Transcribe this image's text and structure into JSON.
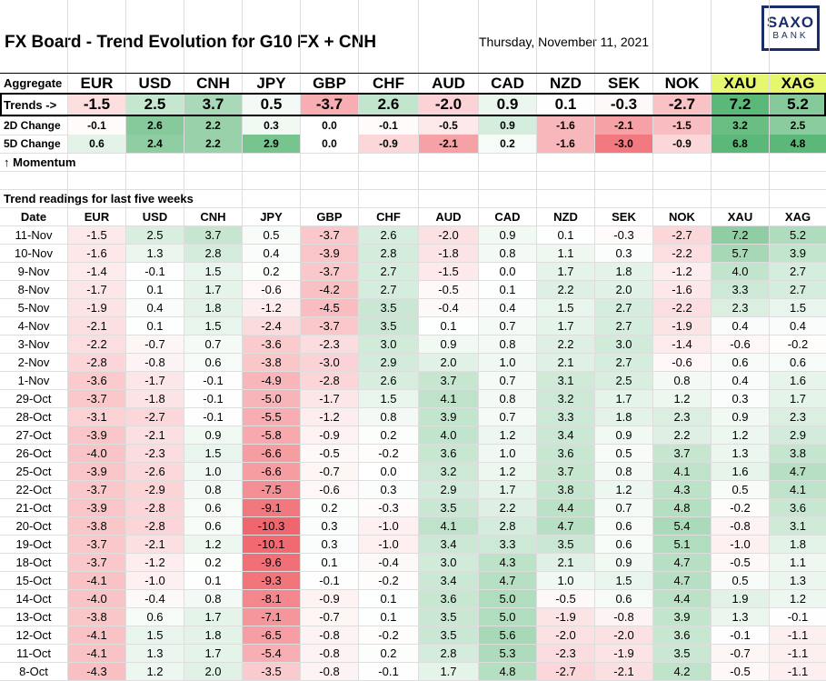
{
  "header": {
    "title": "FX Board - Trend Evolution for G10 FX + CNH",
    "date": "Thursday, November 11, 2021",
    "logo": [
      "SAXO",
      "BANK"
    ]
  },
  "colors": {
    "positive": "#5cb878",
    "negative": "#f0636b",
    "metals_header": "#e6f76f",
    "logo": "#1a2d6b"
  },
  "columns": [
    "EUR",
    "USD",
    "CNH",
    "JPY",
    "GBP",
    "CHF",
    "AUD",
    "CAD",
    "NZD",
    "SEK",
    "NOK",
    "XAU",
    "XAG"
  ],
  "aggregate": {
    "label": "Aggregate",
    "rows": [
      {
        "label": "Trends ->",
        "values": [
          -1.5,
          2.5,
          3.7,
          0.5,
          -3.7,
          2.6,
          -2.0,
          0.9,
          0.1,
          -0.3,
          -2.7,
          7.2,
          5.2
        ]
      },
      {
        "label": "2D Change",
        "values": [
          -0.1,
          2.6,
          2.2,
          0.3,
          0.0,
          -0.1,
          -0.5,
          0.9,
          -1.6,
          -2.1,
          -1.5,
          3.2,
          2.5
        ]
      },
      {
        "label": "5D Change",
        "values": [
          0.6,
          2.4,
          2.2,
          2.9,
          0.0,
          -0.9,
          -2.1,
          0.2,
          -1.6,
          -3.0,
          -0.9,
          6.8,
          4.8
        ]
      }
    ],
    "momentum_label": "↑ Momentum"
  },
  "history": {
    "section_title": "Trend readings for last five weeks",
    "date_header": "Date",
    "rows": [
      {
        "date": "11-Nov",
        "values": [
          -1.5,
          2.5,
          3.7,
          0.5,
          -3.7,
          2.6,
          -2.0,
          0.9,
          0.1,
          -0.3,
          -2.7,
          7.2,
          5.2
        ]
      },
      {
        "date": "10-Nov",
        "values": [
          -1.6,
          1.3,
          2.8,
          0.4,
          -3.9,
          2.8,
          -1.8,
          0.8,
          1.1,
          0.3,
          -2.2,
          5.7,
          3.9
        ]
      },
      {
        "date": "9-Nov",
        "values": [
          -1.4,
          -0.1,
          1.5,
          0.2,
          -3.7,
          2.7,
          -1.5,
          0.0,
          1.7,
          1.8,
          -1.2,
          4.0,
          2.7
        ]
      },
      {
        "date": "8-Nov",
        "values": [
          -1.7,
          0.1,
          1.7,
          -0.6,
          -4.2,
          2.7,
          -0.5,
          0.1,
          2.2,
          2.0,
          -1.6,
          3.3,
          2.7
        ]
      },
      {
        "date": "5-Nov",
        "values": [
          -1.9,
          0.4,
          1.8,
          -1.2,
          -4.5,
          3.5,
          -0.4,
          0.4,
          1.5,
          2.7,
          -2.2,
          2.3,
          1.5
        ]
      },
      {
        "date": "4-Nov",
        "values": [
          -2.1,
          0.1,
          1.5,
          -2.4,
          -3.7,
          3.5,
          0.1,
          0.7,
          1.7,
          2.7,
          -1.9,
          0.4,
          0.4
        ]
      },
      {
        "date": "3-Nov",
        "values": [
          -2.2,
          -0.7,
          0.7,
          -3.6,
          -2.3,
          3.0,
          0.9,
          0.8,
          2.2,
          3.0,
          -1.4,
          -0.6,
          -0.2
        ]
      },
      {
        "date": "2-Nov",
        "values": [
          -2.8,
          -0.8,
          0.6,
          -3.8,
          -3.0,
          2.9,
          2.0,
          1.0,
          2.1,
          2.7,
          -0.6,
          0.6,
          0.6
        ]
      },
      {
        "date": "1-Nov",
        "values": [
          -3.6,
          -1.7,
          -0.1,
          -4.9,
          -2.8,
          2.6,
          3.7,
          0.7,
          3.1,
          2.5,
          0.8,
          0.4,
          1.6
        ]
      },
      {
        "date": "29-Oct",
        "values": [
          -3.7,
          -1.8,
          -0.1,
          -5.0,
          -1.7,
          1.5,
          4.1,
          0.8,
          3.2,
          1.7,
          1.2,
          0.3,
          1.7
        ]
      },
      {
        "date": "28-Oct",
        "values": [
          -3.1,
          -2.7,
          -0.1,
          -5.5,
          -1.2,
          0.8,
          3.9,
          0.7,
          3.3,
          1.8,
          2.3,
          0.9,
          2.3
        ]
      },
      {
        "date": "27-Oct",
        "values": [
          -3.9,
          -2.1,
          0.9,
          -5.8,
          -0.9,
          0.2,
          4.0,
          1.2,
          3.4,
          0.9,
          2.2,
          1.2,
          2.9
        ]
      },
      {
        "date": "26-Oct",
        "values": [
          -4.0,
          -2.3,
          1.5,
          -6.6,
          -0.5,
          -0.2,
          3.6,
          1.0,
          3.6,
          0.5,
          3.7,
          1.3,
          3.8
        ]
      },
      {
        "date": "25-Oct",
        "values": [
          -3.9,
          -2.6,
          1.0,
          -6.6,
          -0.7,
          0.0,
          3.2,
          1.2,
          3.7,
          0.8,
          4.1,
          1.6,
          4.7
        ]
      },
      {
        "date": "22-Oct",
        "values": [
          -3.7,
          -2.9,
          0.8,
          -7.5,
          -0.6,
          0.3,
          2.9,
          1.7,
          3.8,
          1.2,
          4.3,
          0.5,
          4.1
        ]
      },
      {
        "date": "21-Oct",
        "values": [
          -3.9,
          -2.8,
          0.6,
          -9.1,
          0.2,
          -0.3,
          3.5,
          2.2,
          4.4,
          0.7,
          4.8,
          -0.2,
          3.6
        ]
      },
      {
        "date": "20-Oct",
        "values": [
          -3.8,
          -2.8,
          0.6,
          -10.3,
          0.3,
          -1.0,
          4.1,
          2.8,
          4.7,
          0.6,
          5.4,
          -0.8,
          3.1
        ]
      },
      {
        "date": "19-Oct",
        "values": [
          -3.7,
          -2.1,
          1.2,
          -10.1,
          0.3,
          -1.0,
          3.4,
          3.3,
          3.5,
          0.6,
          5.1,
          -1.0,
          1.8
        ]
      },
      {
        "date": "18-Oct",
        "values": [
          -3.7,
          -1.2,
          0.2,
          -9.6,
          0.1,
          -0.4,
          3.0,
          4.3,
          2.1,
          0.9,
          4.7,
          -0.5,
          1.1
        ]
      },
      {
        "date": "15-Oct",
        "values": [
          -4.1,
          -1.0,
          0.1,
          -9.3,
          -0.1,
          -0.2,
          3.4,
          4.7,
          1.0,
          1.5,
          4.7,
          0.5,
          1.3
        ]
      },
      {
        "date": "14-Oct",
        "values": [
          -4.0,
          -0.4,
          0.8,
          -8.1,
          -0.9,
          0.1,
          3.6,
          5.0,
          -0.5,
          0.6,
          4.4,
          1.9,
          1.2
        ]
      },
      {
        "date": "13-Oct",
        "values": [
          -3.8,
          0.6,
          1.7,
          -7.1,
          -0.7,
          0.1,
          3.5,
          5.0,
          -1.9,
          -0.8,
          3.9,
          1.3,
          -0.1
        ]
      },
      {
        "date": "12-Oct",
        "values": [
          -4.1,
          1.5,
          1.8,
          -6.5,
          -0.8,
          -0.2,
          3.5,
          5.6,
          -2.0,
          -2.0,
          3.6,
          -0.1,
          -1.1
        ]
      },
      {
        "date": "11-Oct",
        "values": [
          -4.1,
          1.3,
          1.7,
          -5.4,
          -0.8,
          0.2,
          2.8,
          5.3,
          -2.3,
          -1.9,
          3.5,
          -0.7,
          -1.1
        ]
      },
      {
        "date": "8-Oct",
        "values": [
          -4.3,
          1.2,
          2.0,
          -3.5,
          -0.8,
          -0.1,
          1.7,
          4.8,
          -2.7,
          -2.1,
          4.2,
          -0.5,
          -1.1
        ]
      }
    ]
  }
}
